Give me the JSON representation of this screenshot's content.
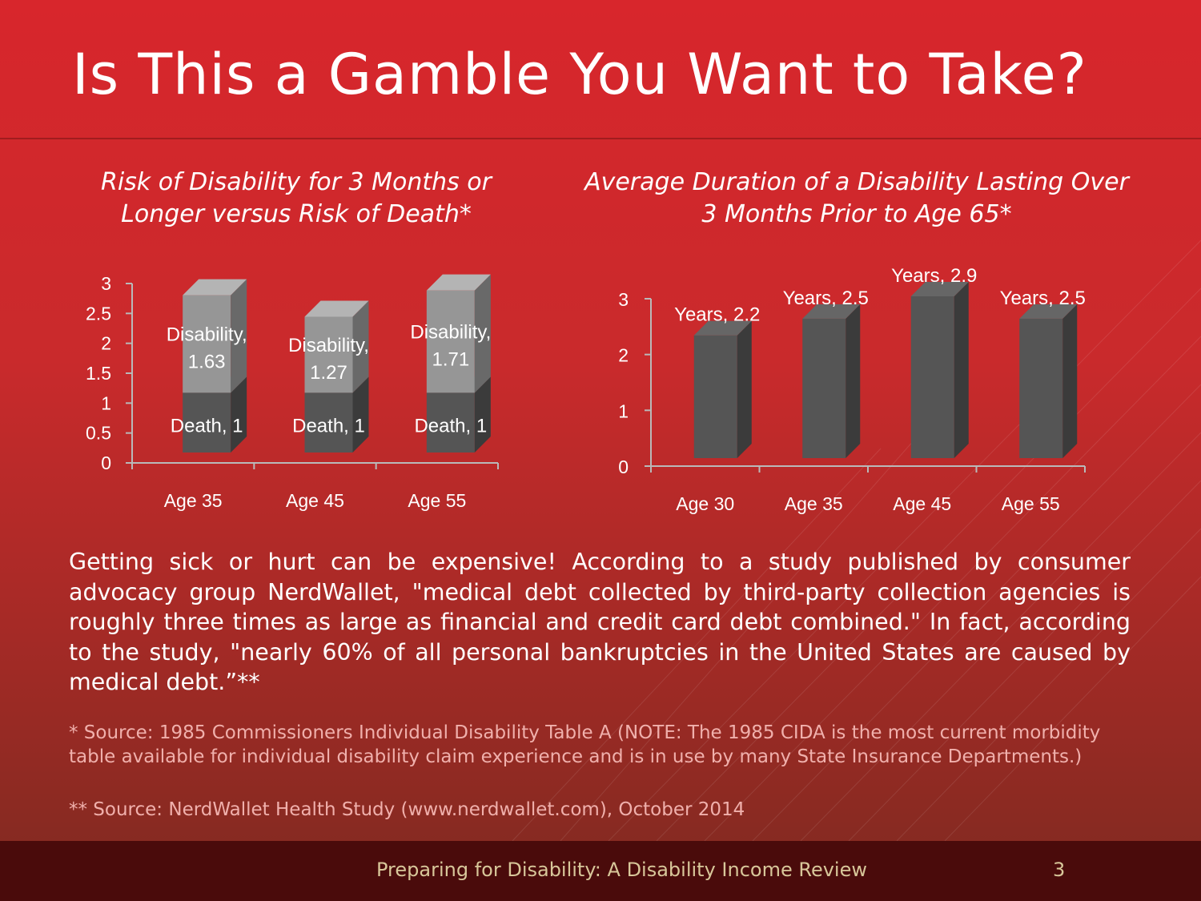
{
  "slide": {
    "title": "Is This a Gamble You Want to Take?",
    "body": "Getting sick or hurt can be expensive!  According to a study published by consumer advocacy group NerdWallet, \"medical debt collected by third-party collection agencies is roughly three times as large as financial and credit card debt combined.\"  In fact, according to the study, \"nearly 60% of all personal bankruptcies in the United States are caused by medical debt.”**",
    "footnote1": "* Source:  1985 Commissioners Individual Disability Table A (NOTE: The 1985 CIDA is the most current morbidity table available for individual disability claim experience and is in use by many State Insurance Departments.)",
    "footnote2": "** Source:   NerdWallet Health Study (www.nerdwallet.com), October 2014",
    "footer_title": "Preparing for Disability: A Disability Income Review",
    "page_number": "3"
  },
  "colors": {
    "background_top": "#d8262c",
    "background_bottom": "#7e2a20",
    "bar_dark": "#555555",
    "bar_light": "#969696",
    "footer_bar": "#4a0b0b",
    "footer_text": "#d8c79a"
  },
  "chart_data": [
    {
      "type": "bar",
      "stacked": true,
      "title": "Risk of Disability for 3 Months or Longer versus Risk of Death*",
      "categories": [
        "Age 35",
        "Age 45",
        "Age 55"
      ],
      "series": [
        {
          "name": "Death",
          "values": [
            1,
            1,
            1
          ],
          "labels": [
            "Death, 1",
            "Death, 1",
            "Death, 1"
          ]
        },
        {
          "name": "Disability",
          "values": [
            1.63,
            1.27,
            1.71
          ],
          "labels": [
            "Disability, 1.63",
            "Disability, 1.27",
            "Disability, 1.71"
          ]
        }
      ],
      "ylim": [
        0,
        3
      ],
      "yticks": [
        "0",
        "0.5",
        "1",
        "1.5",
        "2",
        "2.5",
        "3"
      ],
      "xlabel": "",
      "ylabel": ""
    },
    {
      "type": "bar",
      "title": "Average Duration of a Disability Lasting Over 3 Months Prior to Age 65*",
      "categories": [
        "Age 30",
        "Age 35",
        "Age 45",
        "Age 55"
      ],
      "series": [
        {
          "name": "Years",
          "values": [
            2.2,
            2.5,
            2.9,
            2.5
          ],
          "labels": [
            "Years, 2.2",
            "Years, 2.5",
            "Years, 2.9",
            "Years, 2.5"
          ]
        }
      ],
      "ylim": [
        0,
        3
      ],
      "yticks": [
        "0",
        "1",
        "2",
        "3"
      ],
      "xlabel": "",
      "ylabel": ""
    }
  ]
}
